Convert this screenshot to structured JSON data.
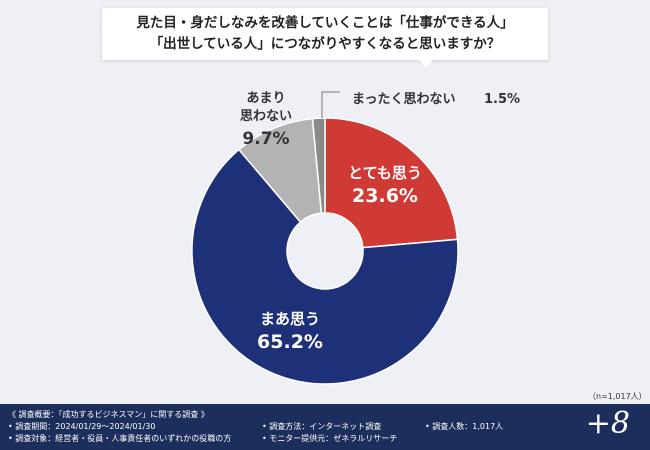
{
  "title": {
    "line1": "見た目・身だしなみを改善していくことは「仕事ができる人」",
    "line2": "「出世している人」につながりやすくなると思いますか？"
  },
  "chart_data": {
    "type": "pie",
    "donut": true,
    "categories": [
      "とても思う",
      "まあ思う",
      "あまり思わない",
      "まったく思わない"
    ],
    "values": [
      23.6,
      65.2,
      9.7,
      1.5
    ],
    "unit": "%",
    "colors": [
      "#d03a35",
      "#1e3178",
      "#b3b3b3",
      "#8a8a8a"
    ]
  },
  "n_note": "（n=1,017人）",
  "footer": {
    "overview": "《 調査概要：「成功するビジネスマン」に関する調査 》",
    "period": "• 調査期間：2024/01/29～2024/01/30",
    "target": "• 調査対象：経営者・役員・人事責任者のいずれかの役職の方",
    "method": "• 調査方法：インターネット調査",
    "provider": "• モニター提供元：ゼネラルリサーチ",
    "count": "• 調査人数：1,017人",
    "brand": "+8"
  }
}
